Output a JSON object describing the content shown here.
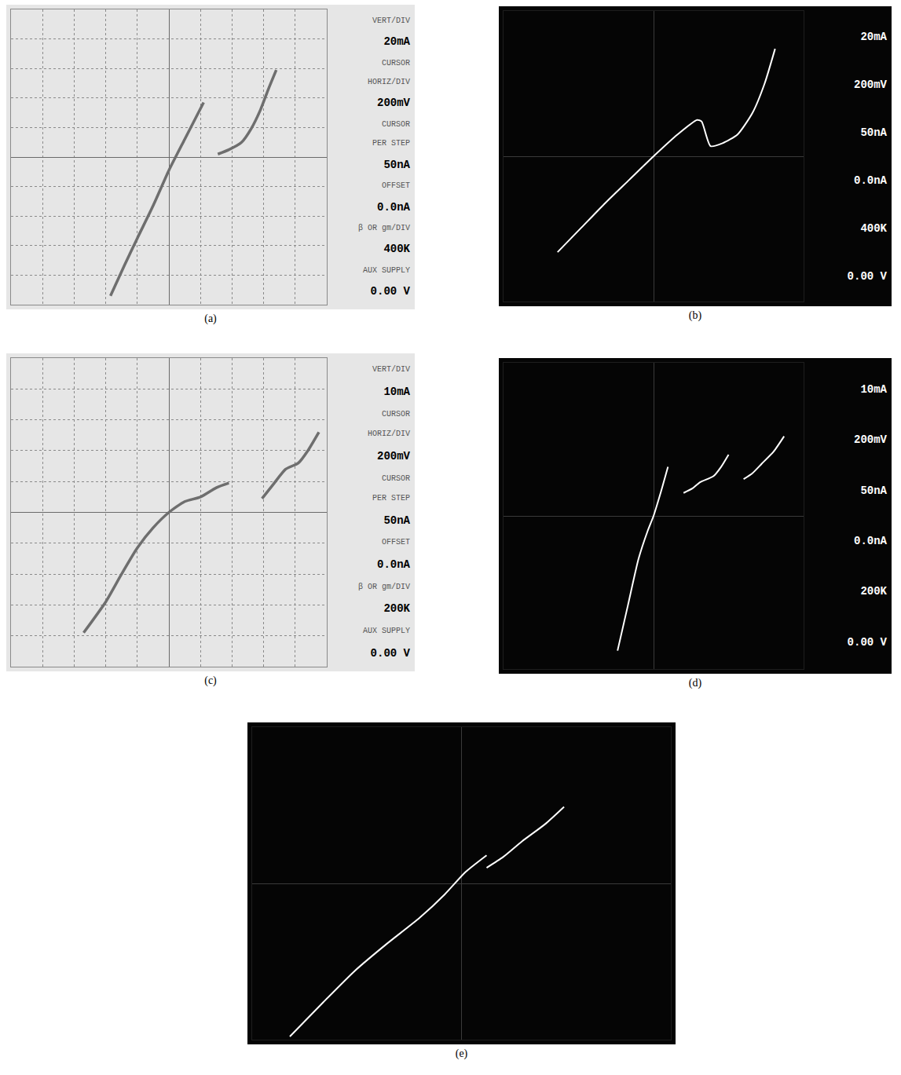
{
  "chart_data": [
    {
      "type": "line",
      "title": "(a)",
      "color": "#6e6e6e",
      "grid": true,
      "tick_labels": false,
      "xlim": [
        -5,
        5
      ],
      "ylim": [
        -5,
        5
      ],
      "xticks": [
        -5,
        -4,
        -3,
        -2,
        -1,
        0,
        1,
        2,
        3,
        4,
        5
      ],
      "yticks": [
        -5,
        -4,
        -3,
        -2,
        -1,
        0,
        1,
        2,
        3,
        4,
        5
      ],
      "x": [
        -1.85,
        -1.4,
        -1.0,
        -0.5,
        0,
        0.5,
        1.1,
        null,
        1.55,
        1.9,
        2.3,
        2.6,
        2.9,
        3.15,
        3.4
      ],
      "values": [
        -4.7,
        -3.65,
        -2.75,
        -1.65,
        -0.45,
        0.6,
        1.85,
        null,
        0.1,
        0.25,
        0.5,
        0.95,
        1.6,
        2.3,
        2.95
      ],
      "readout": [
        {
          "label": "VERT/DIV",
          "value": "20mA"
        },
        {
          "label": "CURSOR"
        },
        {
          "label": "HORIZ/DIV",
          "value": "200mV"
        },
        {
          "label": "CURSOR"
        },
        {
          "label": "PER STEP",
          "value": "50nA"
        },
        {
          "label": "OFFSET",
          "value": "0.0nA"
        },
        {
          "label": "β OR gm/DIV",
          "value": "400K"
        },
        {
          "label": "AUX SUPPLY",
          "value": "0.00 V"
        }
      ]
    },
    {
      "type": "line",
      "title": "(b)",
      "color": "#ffffff",
      "grid": false,
      "tick_labels": false,
      "xlim": [
        -5,
        5
      ],
      "ylim": [
        -5,
        5
      ],
      "xticks": [
        -5,
        -4,
        -3,
        -2,
        -1,
        0,
        1,
        2,
        3,
        4,
        5
      ],
      "yticks": [
        -5,
        -4,
        -3,
        -2,
        -1,
        0,
        1,
        2,
        3,
        4,
        5
      ],
      "x": [
        -3.2,
        -2.4,
        -1.6,
        -0.8,
        0,
        0.8,
        1.45,
        1.6,
        1.9,
        2.3,
        2.8,
        3.3,
        3.7,
        4.05
      ],
      "values": [
        -3.3,
        -2.45,
        -1.6,
        -0.8,
        0,
        0.75,
        1.25,
        1.2,
        0.35,
        0.45,
        0.75,
        1.5,
        2.5,
        3.7
      ],
      "readout": [
        {
          "value": "20mA"
        },
        {
          "value": "200mV"
        },
        {
          "value": "50nA"
        },
        {
          "value": "0.0nA"
        },
        {
          "value": "400K"
        },
        {
          "value": "0.00 V"
        }
      ]
    },
    {
      "type": "line",
      "title": "(c)",
      "color": "#6e6e6e",
      "grid": true,
      "tick_labels": false,
      "xlim": [
        -5,
        5
      ],
      "ylim": [
        -5,
        5
      ],
      "xticks": [
        -5,
        -4,
        -3,
        -2,
        -1,
        0,
        1,
        2,
        3,
        4,
        5
      ],
      "yticks": [
        -5,
        -4,
        -3,
        -2,
        -1,
        0,
        1,
        2,
        3,
        4,
        5
      ],
      "x": [
        -2.7,
        -2.0,
        -1.5,
        -1.0,
        -0.5,
        0,
        0.5,
        1.0,
        1.5,
        1.9,
        null,
        2.95,
        3.3,
        3.7,
        4.1,
        4.4,
        4.75
      ],
      "values": [
        -3.9,
        -2.9,
        -2.0,
        -1.15,
        -0.5,
        0,
        0.35,
        0.5,
        0.8,
        0.95,
        null,
        0.45,
        0.9,
        1.4,
        1.6,
        2.0,
        2.6
      ],
      "readout": [
        {
          "label": "VERT/DIV",
          "value": "10mA"
        },
        {
          "label": "CURSOR"
        },
        {
          "label": "HORIZ/DIV",
          "value": "200mV"
        },
        {
          "label": "CURSOR"
        },
        {
          "label": "PER STEP",
          "value": "50nA"
        },
        {
          "label": "OFFSET",
          "value": "0.0nA"
        },
        {
          "label": "β OR gm/DIV",
          "value": "200K"
        },
        {
          "label": "AUX SUPPLY",
          "value": "0.00 V"
        }
      ]
    },
    {
      "type": "line",
      "title": "(d)",
      "color": "#ffffff",
      "grid": false,
      "tick_labels": false,
      "xlim": [
        -5,
        5
      ],
      "ylim": [
        -5,
        5
      ],
      "xticks": [
        -5,
        -4,
        -3,
        -2,
        -1,
        0,
        1,
        2,
        3,
        4,
        5
      ],
      "yticks": [
        -5,
        -4,
        -3,
        -2,
        -1,
        0,
        1,
        2,
        3,
        4,
        5
      ],
      "x": [
        -1.2,
        -0.85,
        -0.5,
        -0.2,
        0,
        0.25,
        0.48,
        null,
        1.0,
        1.3,
        1.55,
        2.0,
        2.25,
        2.5,
        null,
        3.0,
        3.3,
        3.6,
        4.0,
        4.35
      ],
      "values": [
        -4.4,
        -2.9,
        -1.4,
        -0.5,
        0,
        0.8,
        1.6,
        null,
        0.75,
        0.9,
        1.1,
        1.3,
        1.6,
        2.0,
        null,
        1.2,
        1.4,
        1.7,
        2.1,
        2.6
      ],
      "readout": [
        {
          "value": "10mA"
        },
        {
          "value": "200mV"
        },
        {
          "value": "50nA"
        },
        {
          "value": "0.0nA"
        },
        {
          "value": "200K"
        },
        {
          "value": "0.00 V"
        }
      ]
    },
    {
      "type": "line",
      "title": "(e)",
      "color": "#ffffff",
      "grid": false,
      "tick_labels": false,
      "xlim": [
        -5,
        5
      ],
      "ylim": [
        -5,
        5
      ],
      "xticks": [
        -5,
        -4,
        -3,
        -2,
        -1,
        0,
        1,
        2,
        3,
        4,
        5
      ],
      "yticks": [
        -5,
        -4,
        -3,
        -2,
        -1,
        0,
        1,
        2,
        3,
        4,
        5
      ],
      "x": [
        -4.1,
        -3.3,
        -2.55,
        -1.8,
        -1.0,
        -0.4,
        0.1,
        0.6,
        null,
        0.6,
        1.0,
        1.45,
        2.0,
        2.45
      ],
      "values": [
        -4.9,
        -3.8,
        -2.8,
        -1.95,
        -1.1,
        -0.35,
        0.37,
        0.9,
        null,
        0.5,
        0.85,
        1.35,
        1.9,
        2.45
      ]
    }
  ]
}
